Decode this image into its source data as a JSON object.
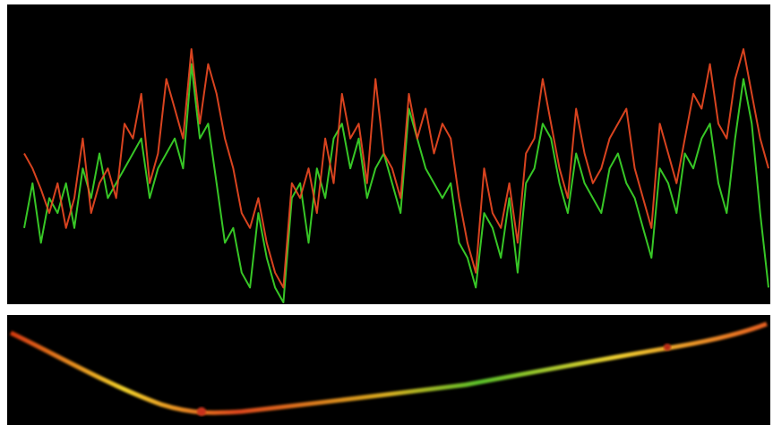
{
  "chart_data": {
    "type": "line",
    "ylim": [
      0,
      100
    ],
    "background": "#000000",
    "series": [
      {
        "color": "#3ddc2a",
        "values": [
          25,
          40,
          20,
          35,
          30,
          40,
          25,
          45,
          35,
          50,
          35,
          40,
          45,
          50,
          55,
          35,
          45,
          50,
          55,
          45,
          80,
          55,
          60,
          40,
          20,
          25,
          10,
          5,
          30,
          15,
          5,
          0,
          35,
          40,
          20,
          45,
          35,
          55,
          60,
          45,
          55,
          35,
          45,
          50,
          40,
          30,
          65,
          55,
          45,
          40,
          35,
          40,
          20,
          15,
          5,
          30,
          25,
          15,
          35,
          10,
          40,
          45,
          60,
          55,
          40,
          30,
          50,
          40,
          35,
          30,
          45,
          50,
          40,
          35,
          25,
          15,
          45,
          40,
          30,
          50,
          45,
          55,
          60,
          40,
          30,
          55,
          75,
          60,
          30,
          5
        ]
      },
      {
        "color": "#f04a22",
        "values": [
          50,
          45,
          38,
          30,
          40,
          25,
          35,
          55,
          30,
          40,
          45,
          35,
          60,
          55,
          70,
          40,
          50,
          75,
          65,
          55,
          85,
          60,
          80,
          70,
          55,
          45,
          30,
          25,
          35,
          20,
          10,
          5,
          40,
          35,
          45,
          30,
          55,
          40,
          70,
          55,
          60,
          40,
          75,
          50,
          45,
          35,
          70,
          55,
          65,
          50,
          60,
          55,
          35,
          20,
          10,
          45,
          30,
          25,
          40,
          20,
          50,
          55,
          75,
          60,
          45,
          35,
          65,
          50,
          40,
          45,
          55,
          60,
          65,
          45,
          35,
          25,
          60,
          50,
          40,
          55,
          70,
          65,
          80,
          60,
          55,
          75,
          85,
          70,
          55,
          45
        ]
      }
    ]
  }
}
